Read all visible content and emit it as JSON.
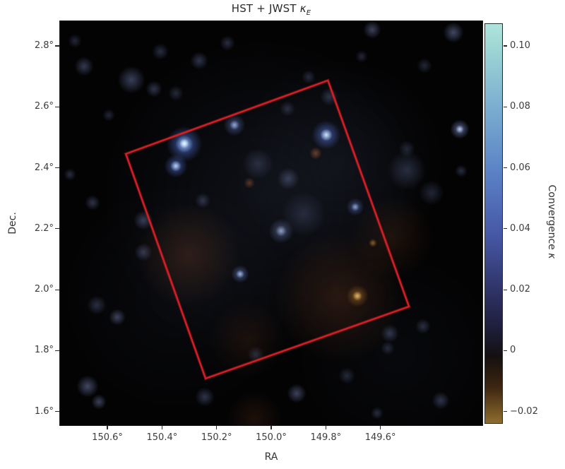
{
  "figure": {
    "title_prefix": "HST + JWST ",
    "title_symbol": "κ",
    "title_subscript": "E",
    "background": "#ffffff"
  },
  "axes": {
    "x": {
      "label": "RA",
      "range": [
        150.776,
        149.224
      ],
      "ticks": [
        {
          "label": "150.6°",
          "value": 150.6
        },
        {
          "label": "150.4°",
          "value": 150.4
        },
        {
          "label": "150.2°",
          "value": 150.2
        },
        {
          "label": "150.0°",
          "value": 150.0
        },
        {
          "label": "149.8°",
          "value": 149.8
        },
        {
          "label": "149.6°",
          "value": 149.6
        }
      ]
    },
    "y": {
      "label": "Dec.",
      "range": [
        2.8834,
        1.5531
      ],
      "ticks": [
        {
          "label": "2.8°",
          "value": 2.8
        },
        {
          "label": "2.6°",
          "value": 2.6
        },
        {
          "label": "2.4°",
          "value": 2.4
        },
        {
          "label": "2.2°",
          "value": 2.2
        },
        {
          "label": "2.0°",
          "value": 2.0
        },
        {
          "label": "1.8°",
          "value": 1.8
        },
        {
          "label": "1.6°",
          "value": 1.6
        }
      ]
    }
  },
  "colorbar": {
    "label_text": "Convergence ",
    "label_symbol": "κ",
    "range": [
      0.1074,
      -0.024
    ],
    "ticks": [
      {
        "label": "0.10",
        "value": 0.1
      },
      {
        "label": "0.08",
        "value": 0.08
      },
      {
        "label": "0.06",
        "value": 0.06
      },
      {
        "label": "0.04",
        "value": 0.04
      },
      {
        "label": "0.02",
        "value": 0.02
      },
      {
        "label": "0",
        "value": 0
      },
      {
        "label": "−0.02",
        "value": -0.02
      }
    ],
    "gradient": [
      {
        "f": 0,
        "c": "#b0e4dc"
      },
      {
        "f": 5.7,
        "c": "#9fd7d5"
      },
      {
        "f": 21.2,
        "c": "#7aadd0"
      },
      {
        "f": 36.7,
        "c": "#5b83c6"
      },
      {
        "f": 52.3,
        "c": "#4759a8"
      },
      {
        "f": 67.8,
        "c": "#2d3162"
      },
      {
        "f": 76,
        "c": "#1e1e3c"
      },
      {
        "f": 83.3,
        "c": "#141010"
      },
      {
        "f": 91,
        "c": "#3d2511"
      },
      {
        "f": 98.8,
        "c": "#83642a"
      },
      {
        "f": 100,
        "c": "#8d6c2e"
      }
    ]
  },
  "chart_data": {
    "type": "heatmap",
    "title": "HST + JWST κ_E",
    "xlabel": "RA",
    "ylabel": "Dec.",
    "x_range_deg": [
      150.776,
      149.224
    ],
    "y_range_deg": [
      1.553,
      2.883
    ],
    "colorbar_label": "Convergence κ",
    "colorbar_range": [
      -0.024,
      0.107
    ],
    "map_background": "#030304",
    "footprint": {
      "description": "red rotated rectangular survey outline",
      "color": "#d81f26",
      "corners_deg": [
        [
          150.535,
          2.448
        ],
        [
          149.795,
          2.689
        ],
        [
          149.498,
          1.947
        ],
        [
          150.243,
          1.711
        ]
      ]
    },
    "notable_peaks": [
      {
        "ra": 150.31,
        "dec": 2.48,
        "kappa": 0.11,
        "note": "brightest cyan peak"
      },
      {
        "ra": 149.8,
        "dec": 2.51,
        "kappa": 0.09,
        "note": "bright blue peak near top corner of footprint"
      },
      {
        "ra": 150.33,
        "dec": 2.41,
        "kappa": 0.07,
        "note": "blue peak below brightest"
      },
      {
        "ra": 149.69,
        "dec": 1.98,
        "kappa": -0.02,
        "note": "gold negative-convergence peak"
      }
    ],
    "field_blobs_format": [
      "fx",
      "fy",
      "r_px",
      "color",
      "alpha"
    ],
    "field_blobs": [
      [
        0.475,
        0.437,
        230,
        "#39425e",
        0.2
      ],
      [
        0.659,
        0.35,
        150,
        "#333d5c",
        0.16
      ],
      [
        0.274,
        0.681,
        160,
        "#2a3248",
        0.13
      ],
      [
        0.793,
        0.82,
        140,
        "#262e44",
        0.11
      ],
      [
        0.304,
        0.577,
        75,
        "#2f1709",
        0.75
      ],
      [
        0.659,
        0.681,
        95,
        "#2b1408",
        0.8
      ],
      [
        0.784,
        0.533,
        60,
        "#241105",
        0.7
      ],
      [
        0.441,
        0.786,
        55,
        "#220f06",
        0.6
      ],
      [
        0.458,
        0.981,
        40,
        "#241106",
        0.7
      ],
      [
        0.604,
        0.326,
        9,
        "#6b3414",
        0.9
      ],
      [
        0.447,
        0.399,
        8,
        "#5f2e12",
        0.85
      ],
      [
        0.739,
        0.547,
        6,
        "#8a5c20",
        0.9
      ],
      [
        0.701,
        0.678,
        16,
        "#6b4312",
        0.95
      ],
      [
        0.701,
        0.678,
        7,
        "#c29b52",
        1
      ],
      [
        0.057,
        0.111,
        14,
        "#6a79ae",
        0.45
      ],
      [
        0.169,
        0.145,
        20,
        "#6a79ae",
        0.5
      ],
      [
        0.221,
        0.167,
        12,
        "#6a79ae",
        0.4
      ],
      [
        0.328,
        0.098,
        13,
        "#6a79ae",
        0.4
      ],
      [
        0.395,
        0.054,
        11,
        "#6a79ae",
        0.35
      ],
      [
        0.737,
        0.02,
        13,
        "#7d8cc0",
        0.45
      ],
      [
        0.928,
        0.028,
        15,
        "#7d8cc0",
        0.5
      ],
      [
        0.86,
        0.11,
        11,
        "#6a79ae",
        0.3
      ],
      [
        0.115,
        0.232,
        9,
        "#6a79ae",
        0.3
      ],
      [
        0.023,
        0.378,
        9,
        "#6a79ae",
        0.35
      ],
      [
        0.077,
        0.448,
        11,
        "#6a79ae",
        0.4
      ],
      [
        0.197,
        0.491,
        14,
        "#6a79ae",
        0.45
      ],
      [
        0.196,
        0.57,
        13,
        "#6a79ae",
        0.4
      ],
      [
        0.336,
        0.443,
        11,
        "#6a79ae",
        0.35
      ],
      [
        0.818,
        0.368,
        28,
        "#5f6e9e",
        0.35
      ],
      [
        0.819,
        0.315,
        12,
        "#5f6e9e",
        0.3
      ],
      [
        0.876,
        0.423,
        18,
        "#5f6e9e",
        0.3
      ],
      [
        0.947,
        0.369,
        9,
        "#6a79ae",
        0.35
      ],
      [
        0.087,
        0.7,
        14,
        "#6a79ae",
        0.35
      ],
      [
        0.135,
        0.73,
        12,
        "#7d8cc0",
        0.45
      ],
      [
        0.065,
        0.901,
        16,
        "#7d8cc0",
        0.5
      ],
      [
        0.092,
        0.939,
        11,
        "#7d8cc0",
        0.45
      ],
      [
        0.341,
        0.927,
        14,
        "#6a79ae",
        0.4
      ],
      [
        0.462,
        0.822,
        12,
        "#6a79ae",
        0.3
      ],
      [
        0.559,
        0.918,
        14,
        "#7d8cc0",
        0.45
      ],
      [
        0.778,
        0.77,
        13,
        "#6a79ae",
        0.4
      ],
      [
        0.773,
        0.807,
        10,
        "#6a79ae",
        0.3
      ],
      [
        0.856,
        0.753,
        11,
        "#6a79ae",
        0.35
      ],
      [
        0.677,
        0.875,
        12,
        "#6a79ae",
        0.3
      ],
      [
        0.898,
        0.936,
        13,
        "#6a79ae",
        0.4
      ],
      [
        0.748,
        0.967,
        9,
        "#6a79ae",
        0.35
      ],
      [
        0.274,
        0.178,
        11,
        "#6a79ae",
        0.3
      ],
      [
        0.635,
        0.186,
        13,
        "#6a79ae",
        0.35
      ],
      [
        0.587,
        0.138,
        10,
        "#6a79ae",
        0.3
      ],
      [
        0.711,
        0.087,
        9,
        "#6a79ae",
        0.3
      ],
      [
        0.467,
        0.352,
        22,
        "#5f6e9e",
        0.3
      ],
      [
        0.539,
        0.389,
        16,
        "#6a79ae",
        0.4
      ],
      [
        0.575,
        0.476,
        32,
        "#5f6e9e",
        0.25
      ],
      [
        0.035,
        0.049,
        10,
        "#6a79ae",
        0.3
      ],
      [
        0.237,
        0.075,
        12,
        "#6a79ae",
        0.35
      ],
      [
        0.537,
        0.216,
        11,
        "#6a79ae",
        0.3
      ],
      [
        0.294,
        0.303,
        26,
        "#3f5db8",
        0.9
      ],
      [
        0.294,
        0.303,
        13,
        "#7fa6e0",
        0.95
      ],
      [
        0.294,
        0.302,
        7,
        "#d2ecf4",
        1
      ],
      [
        0.274,
        0.357,
        17,
        "#3f5db8",
        0.8
      ],
      [
        0.274,
        0.357,
        8,
        "#a9c6e8",
        0.95
      ],
      [
        0.629,
        0.28,
        21,
        "#3c58b0",
        0.85
      ],
      [
        0.629,
        0.28,
        9,
        "#bdd7ef",
        1
      ],
      [
        0.411,
        0.256,
        16,
        "#5c74c0",
        0.6
      ],
      [
        0.411,
        0.256,
        7,
        "#8ba3d8",
        0.8
      ],
      [
        0.943,
        0.267,
        14,
        "#7c8fd0",
        0.7
      ],
      [
        0.943,
        0.267,
        6,
        "#a9b6e4",
        0.9
      ],
      [
        0.697,
        0.458,
        13,
        "#5068b4",
        0.6
      ],
      [
        0.697,
        0.458,
        6,
        "#8498d0",
        0.8
      ],
      [
        0.425,
        0.624,
        13,
        "#5a74c0",
        0.65
      ],
      [
        0.425,
        0.624,
        6,
        "#90a6dc",
        0.85
      ],
      [
        0.522,
        0.517,
        18,
        "#6c82be",
        0.5
      ],
      [
        0.522,
        0.517,
        8,
        "#93a7d4",
        0.7
      ]
    ]
  }
}
